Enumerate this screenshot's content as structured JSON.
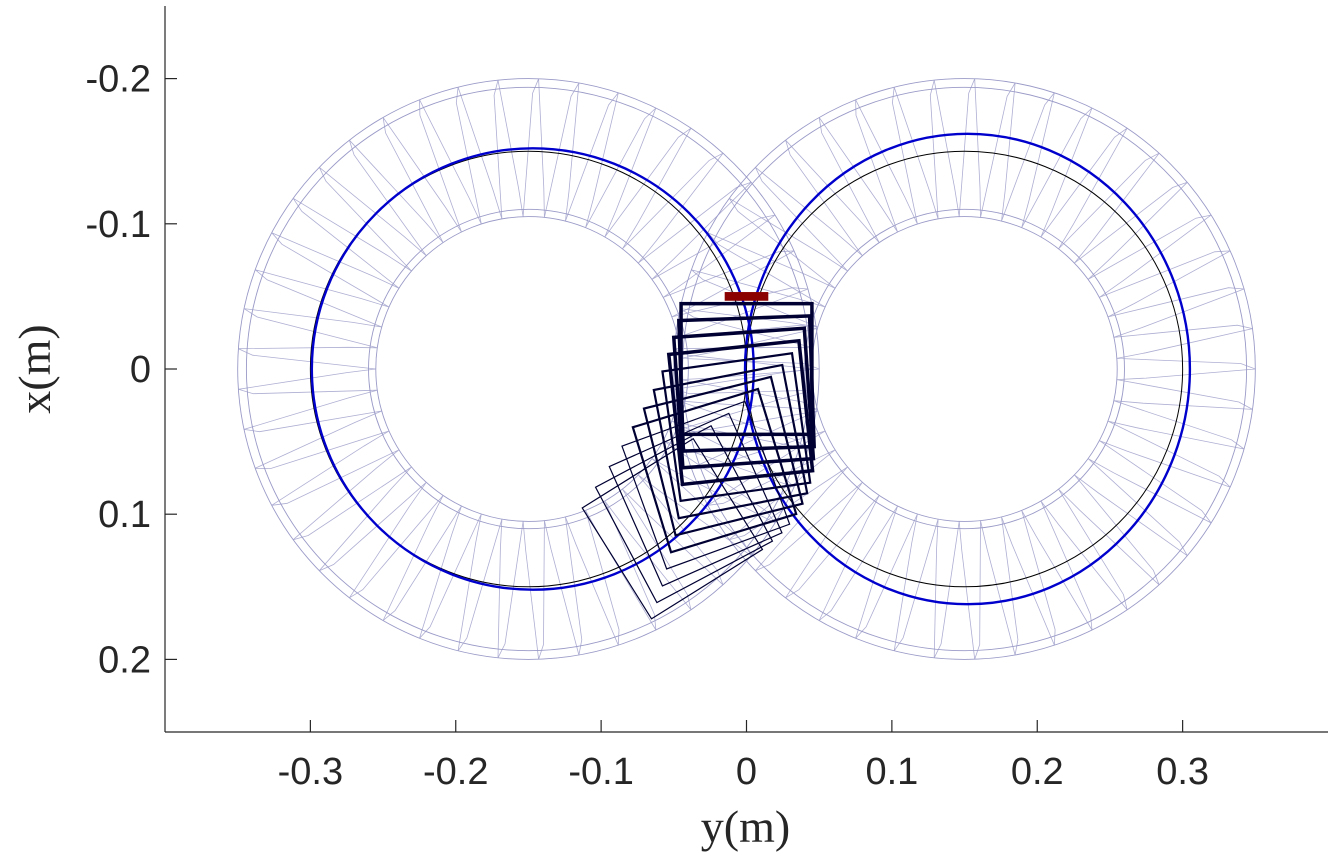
{
  "chart_data": {
    "type": "line",
    "xlabel": "y(m)",
    "ylabel": "x(m)",
    "xlim": [
      -0.4,
      0.4
    ],
    "ylim": [
      0.25,
      -0.25
    ],
    "y_axis_reversed": true,
    "grid": false,
    "x_ticks": [
      -0.3,
      -0.2,
      -0.1,
      0,
      0.1,
      0.2,
      0.3
    ],
    "x_tick_labels": [
      "-0.3",
      "-0.2",
      "-0.1",
      "0",
      "0.1",
      "0.2",
      "0.3"
    ],
    "y_ticks": [
      -0.2,
      -0.1,
      0,
      0.1,
      0.2
    ],
    "y_tick_labels": [
      "-0.2",
      "-0.1",
      "0",
      "0.1",
      "0.2"
    ],
    "reference_path": {
      "shape": "figure-eight",
      "color": "#000000",
      "left_center": [
        -0.15,
        0
      ],
      "right_center": [
        0.15,
        0
      ],
      "radius": 0.15
    },
    "actual_path": {
      "color": "#0000cc",
      "left_lobe": {
        "center": [
          -0.147,
          0
        ],
        "rx": 0.152,
        "ry": 0.152
      },
      "right_lobe": {
        "center": [
          0.152,
          0
        ],
        "rx": 0.153,
        "ry": 0.162
      }
    },
    "swept_footprint": {
      "color": "#9a9ac8",
      "outer_radius": 0.2,
      "inner_radius": 0.105
    },
    "robot_snapshots": {
      "color": "#000033",
      "half_width": 0.045,
      "poses": [
        {
          "y": 0,
          "x": 0,
          "theta_deg": 0
        },
        {
          "y": 0,
          "x": 0.01,
          "theta_deg": -2
        },
        {
          "y": -0.002,
          "x": 0.02,
          "theta_deg": -4
        },
        {
          "y": -0.004,
          "x": 0.03,
          "theta_deg": -6
        },
        {
          "y": -0.007,
          "x": 0.04,
          "theta_deg": -8
        },
        {
          "y": -0.011,
          "x": 0.05,
          "theta_deg": -11
        },
        {
          "y": -0.016,
          "x": 0.06,
          "theta_deg": -14
        },
        {
          "y": -0.022,
          "x": 0.07,
          "theta_deg": -17
        },
        {
          "y": -0.028,
          "x": 0.08,
          "theta_deg": -20
        },
        {
          "y": -0.035,
          "x": 0.09,
          "theta_deg": -24
        },
        {
          "y": -0.043,
          "x": 0.1,
          "theta_deg": -28
        },
        {
          "y": -0.051,
          "x": 0.11,
          "theta_deg": -32
        }
      ]
    },
    "start_marker": {
      "color": "#8b0000",
      "y": 0,
      "x": -0.05,
      "width": 0.03,
      "height": 0.006
    }
  }
}
